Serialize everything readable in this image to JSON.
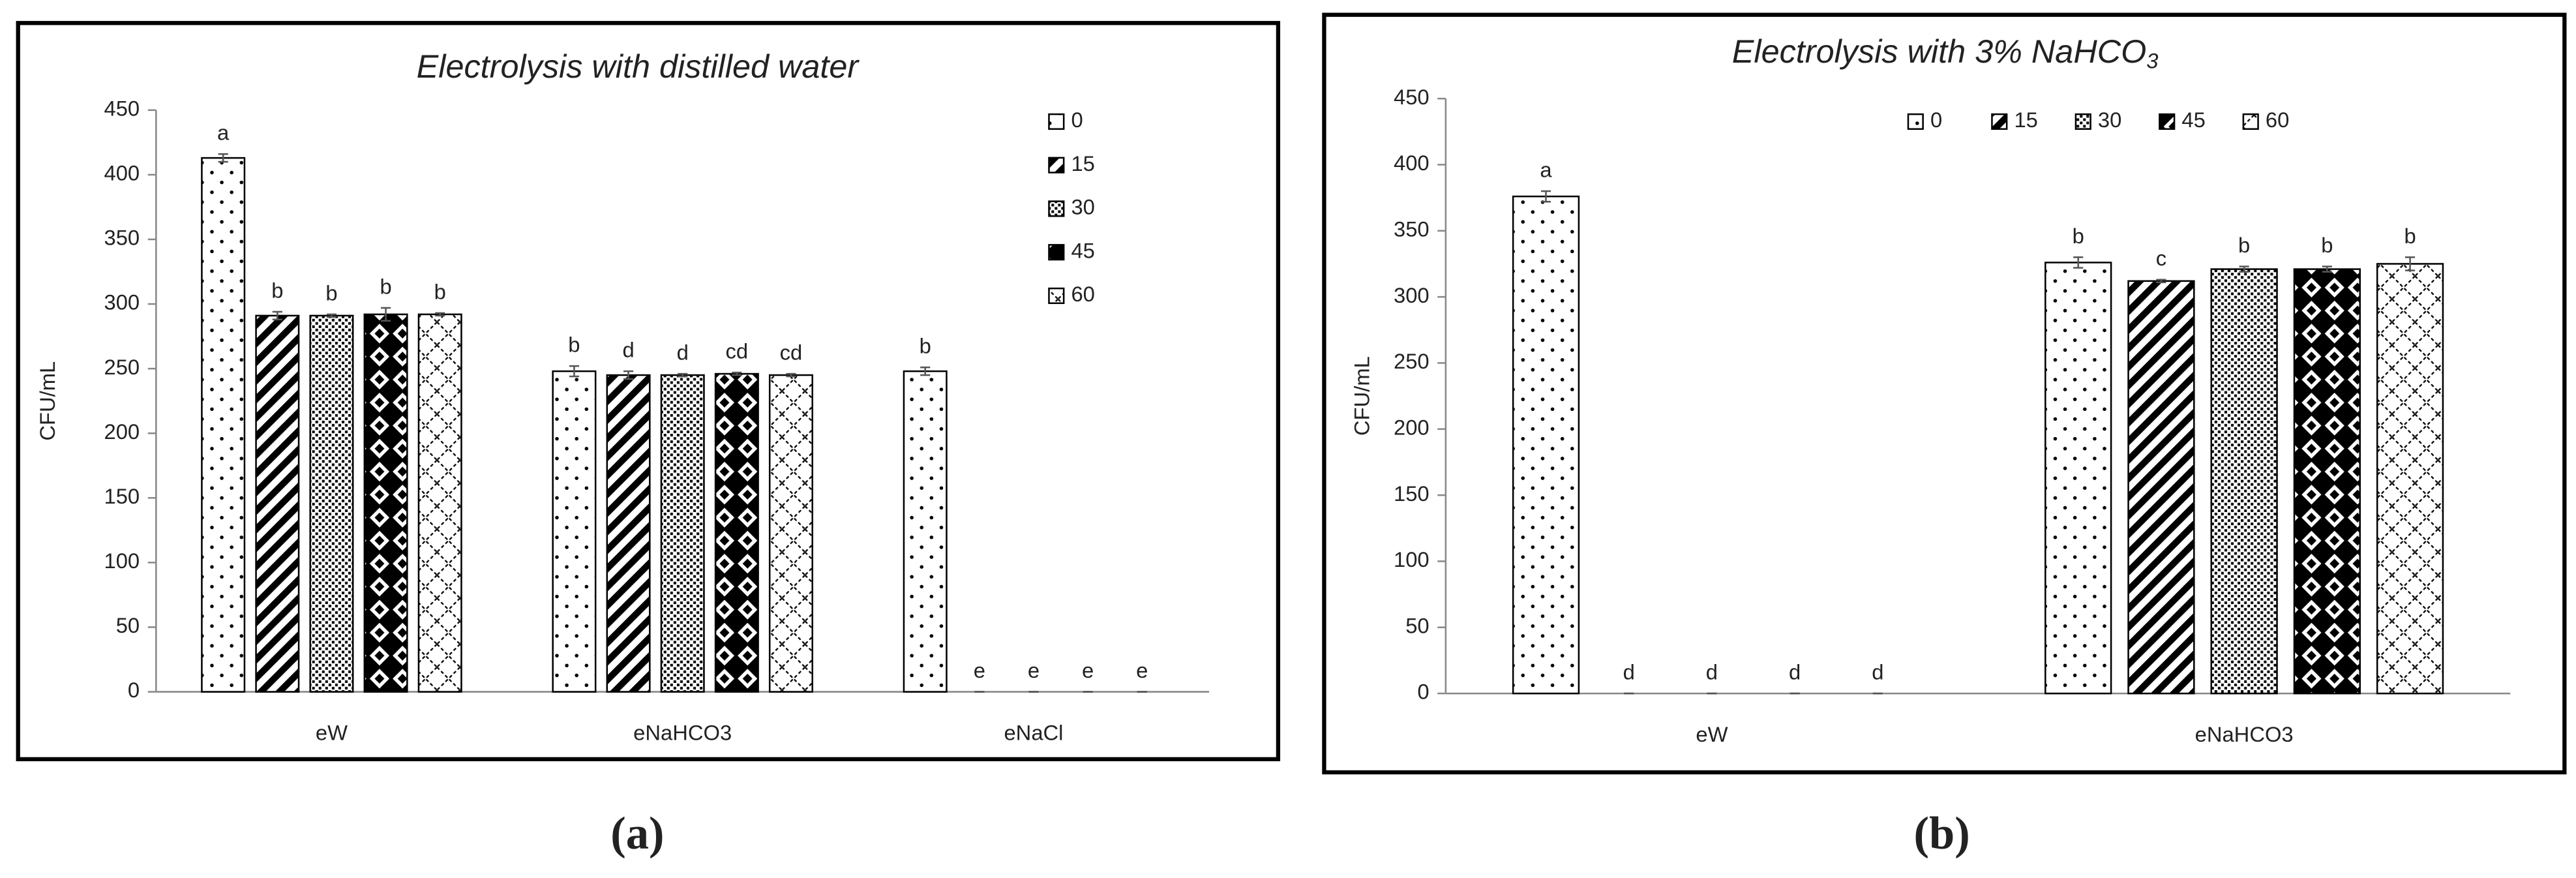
{
  "chart_data": [
    {
      "type": "bar",
      "title": "Electrolysis with distilled water",
      "y_label": "CFU/mL",
      "panel_label": "(a)",
      "categories": [
        "eW",
        "eNaHCO3",
        "eNaCl"
      ],
      "ylim": [
        0,
        450
      ],
      "yticks": [
        0,
        50,
        100,
        150,
        200,
        250,
        300,
        350,
        400,
        450
      ],
      "legend": "top-right",
      "series": [
        {
          "name": "0",
          "color": "#000000",
          "pattern": "dots",
          "values": [
            413,
            248,
            248
          ],
          "errors": [
            3,
            4,
            3
          ],
          "significance_labels": [
            "a",
            "b",
            "b"
          ]
        },
        {
          "name": "15",
          "color": "#000000",
          "pattern": "stripes",
          "values": [
            291,
            245,
            0
          ],
          "errors": [
            3,
            3,
            0
          ],
          "significance_labels": [
            "b",
            "d",
            "e"
          ]
        },
        {
          "name": "30",
          "color": "#000000",
          "pattern": "fine-dots",
          "values": [
            291,
            245,
            0
          ],
          "errors": [
            1,
            1,
            0
          ],
          "significance_labels": [
            "b",
            "d",
            "e"
          ]
        },
        {
          "name": "45",
          "color": "#000000",
          "pattern": "diamonds",
          "values": [
            292,
            246,
            0
          ],
          "errors": [
            5,
            1,
            0
          ],
          "significance_labels": [
            "b",
            "cd",
            "e"
          ]
        },
        {
          "name": "60",
          "color": "#000000",
          "pattern": "cross",
          "values": [
            292,
            245,
            0
          ],
          "errors": [
            1,
            1,
            0
          ],
          "significance_labels": [
            "b",
            "cd",
            "e"
          ]
        }
      ]
    },
    {
      "type": "bar",
      "title": "Electrolysis with 3% NaHCO",
      "title_subscript": "3",
      "y_label": "CFU/mL",
      "panel_label": "(b)",
      "categories": [
        "eW",
        "eNaHCO3"
      ],
      "ylim": [
        0,
        450
      ],
      "yticks": [
        0,
        50,
        100,
        150,
        200,
        250,
        300,
        350,
        400,
        450
      ],
      "legend": "top",
      "series": [
        {
          "name": "0",
          "color": "#000000",
          "pattern": "dots",
          "values": [
            376,
            326
          ],
          "errors": [
            4,
            4
          ],
          "significance_labels": [
            "a",
            "b"
          ]
        },
        {
          "name": "15",
          "color": "#000000",
          "pattern": "stripes",
          "values": [
            0,
            312
          ],
          "errors": [
            0,
            1
          ],
          "significance_labels": [
            "d",
            "c"
          ]
        },
        {
          "name": "30",
          "color": "#000000",
          "pattern": "fine-dots",
          "values": [
            0,
            321
          ],
          "errors": [
            0,
            2
          ],
          "significance_labels": [
            "d",
            "b"
          ]
        },
        {
          "name": "45",
          "color": "#000000",
          "pattern": "diamonds",
          "values": [
            0,
            321
          ],
          "errors": [
            0,
            2
          ],
          "significance_labels": [
            "d",
            "b"
          ]
        },
        {
          "name": "60",
          "color": "#000000",
          "pattern": "cross",
          "values": [
            0,
            325
          ],
          "errors": [
            0,
            5
          ],
          "significance_labels": [
            "d",
            "b"
          ]
        }
      ]
    }
  ]
}
